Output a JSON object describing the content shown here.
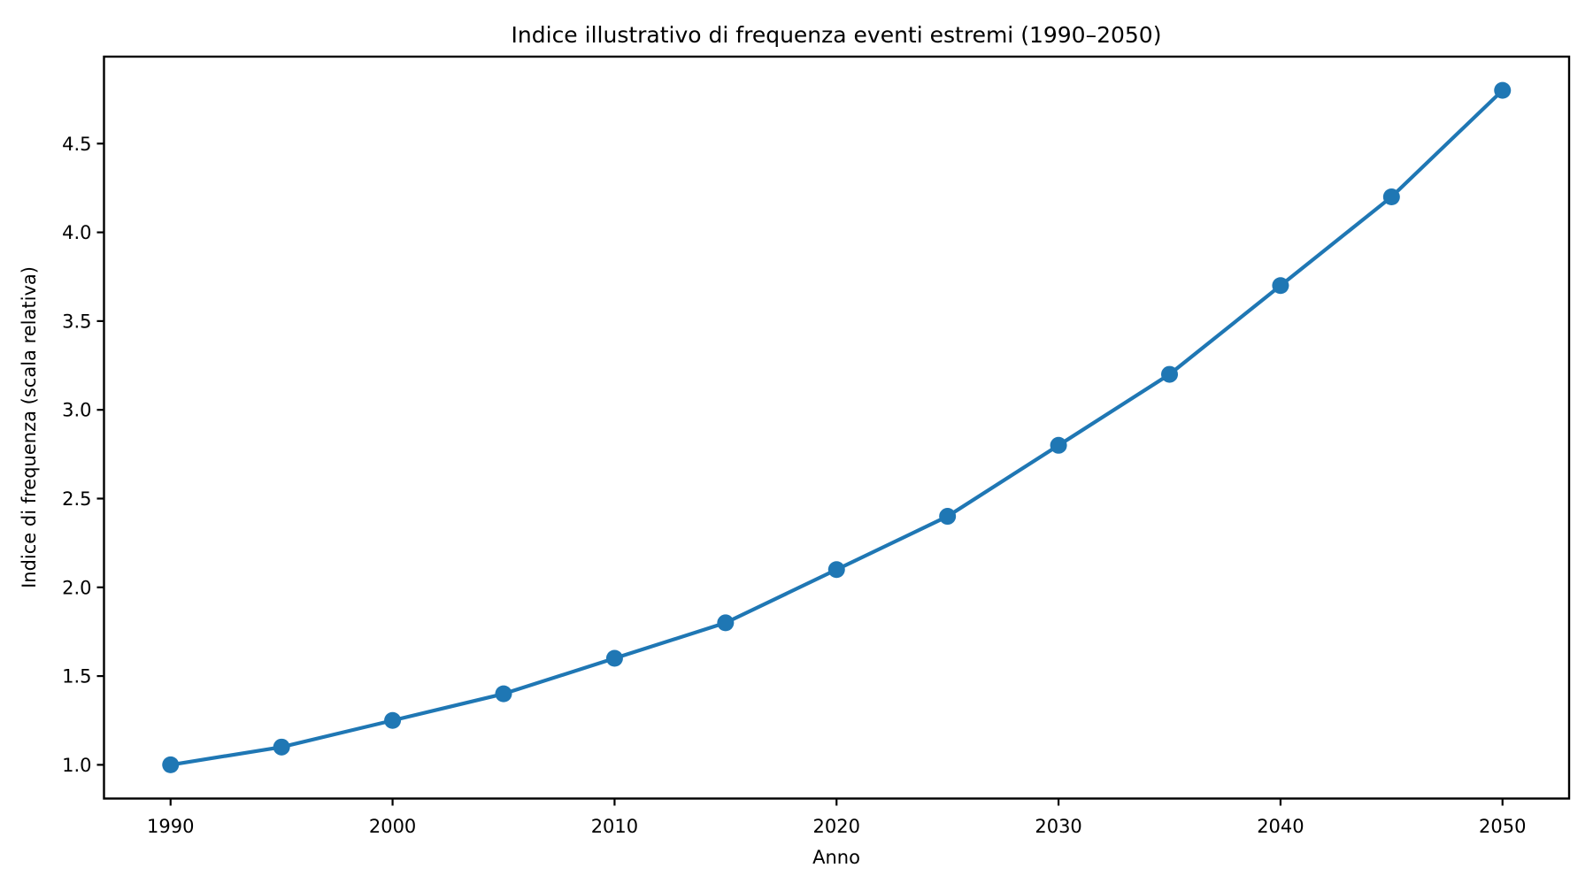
{
  "chart_data": {
    "type": "line",
    "title": "Indice illustrativo di frequenza eventi estremi (1990–2050)",
    "xlabel": "Anno",
    "ylabel": "Indice di frequenza (scala relativa)",
    "x": [
      1990,
      1995,
      2000,
      2005,
      2010,
      2015,
      2020,
      2025,
      2030,
      2035,
      2040,
      2045,
      2050
    ],
    "y": [
      1.0,
      1.1,
      1.25,
      1.4,
      1.6,
      1.8,
      2.1,
      2.4,
      2.8,
      3.2,
      3.7,
      4.2,
      4.8
    ],
    "series_name": "Indice di frequenza",
    "xlim": [
      1987,
      2053
    ],
    "ylim": [
      0.81,
      4.99
    ],
    "x_ticks": [
      1990,
      2000,
      2010,
      2020,
      2030,
      2040,
      2050
    ],
    "x_tick_labels": [
      "1990",
      "2000",
      "2010",
      "2020",
      "2030",
      "2040",
      "2050"
    ],
    "y_ticks": [
      1.0,
      1.5,
      2.0,
      2.5,
      3.0,
      3.5,
      4.0,
      4.5
    ],
    "y_tick_labels": [
      "1.0",
      "1.5",
      "2.0",
      "2.5",
      "3.0",
      "3.5",
      "4.0",
      "4.5"
    ],
    "line_color": "#1f77b4",
    "marker": "circle",
    "marker_color": "#1f77b4",
    "spine_color": "#000000",
    "grid": false,
    "legend": null
  }
}
